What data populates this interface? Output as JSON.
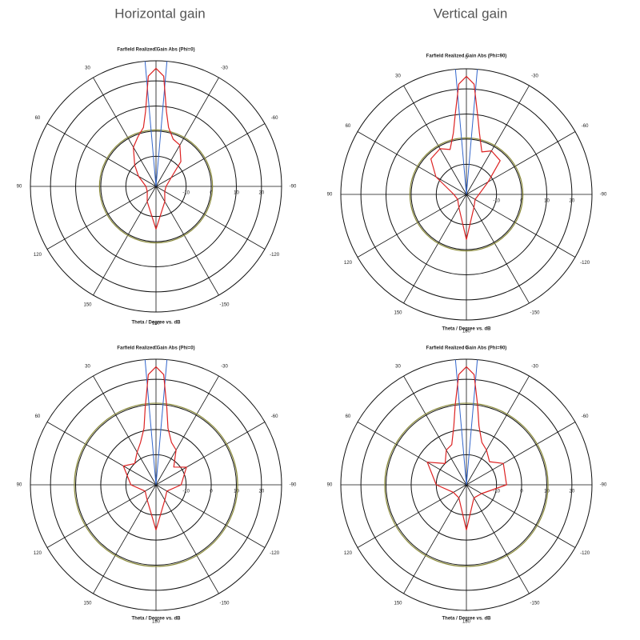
{
  "headers": [
    "Horizontal gain",
    "Vertical gain"
  ],
  "chart_data": [
    {
      "type": "polar",
      "title": "Farfield Realized Gain Abs (Phi=0)",
      "xlabel": "Theta / Degree vs. dB",
      "angle_ticks": [
        0,
        30,
        60,
        90,
        120,
        150,
        180,
        -150,
        -120,
        -90,
        -60,
        -30
      ],
      "rlim": [
        -22,
        28
      ],
      "rticks": [
        -10,
        0,
        10,
        20
      ],
      "reference_level": 0.5,
      "reference_color": "#8a8a3a",
      "beam_lines": [
        -5,
        5
      ],
      "beam_color": "#3366cc",
      "theta": [
        -180,
        -150,
        -120,
        -90,
        -60,
        -45,
        -30,
        -20,
        -12,
        -8,
        -4,
        0,
        4,
        8,
        12,
        20,
        30,
        45,
        60,
        90,
        120,
        150,
        180
      ],
      "values": [
        -5,
        -15,
        -18,
        -18,
        -15,
        -8,
        -3,
        -2,
        2,
        8,
        22,
        25,
        22,
        8,
        2,
        -1,
        -4,
        -10,
        -14,
        -18,
        -18,
        -15,
        -5
      ],
      "color": "#dd2222"
    },
    {
      "type": "polar",
      "title": "Farfield Realized Gain Abs (Phi=90)",
      "xlabel": "Theta / Degree vs. dB",
      "angle_ticks": [
        0,
        30,
        60,
        90,
        120,
        150,
        180,
        -150,
        -120,
        -90,
        -60,
        -30
      ],
      "rlim": [
        -22,
        28
      ],
      "rticks": [
        -10,
        0,
        10,
        20
      ],
      "reference_level": 0.5,
      "reference_color": "#8a8a3a",
      "beam_lines": [
        -5,
        5
      ],
      "beam_color": "#3366cc",
      "theta": [
        -180,
        -150,
        -120,
        -90,
        -60,
        -45,
        -30,
        -20,
        -12,
        -8,
        -4,
        0,
        4,
        8,
        12,
        20,
        30,
        45,
        60,
        90,
        120,
        150,
        180
      ],
      "values": [
        -4,
        -16,
        -18,
        -17,
        -12,
        -3,
        -2,
        -4,
        3,
        10,
        22,
        25,
        22,
        10,
        3,
        -3,
        -1,
        -2,
        -8,
        -17,
        -18,
        -16,
        -4
      ],
      "color": "#dd2222"
    },
    {
      "type": "polar",
      "title": "Farfield Realized Gain Abs (Phi=0)",
      "xlabel": "Theta / Degree vs. dB",
      "angle_ticks": [
        0,
        30,
        60,
        90,
        120,
        150,
        180,
        -150,
        -120,
        -90,
        -60,
        -30
      ],
      "rlim": [
        -22,
        28
      ],
      "rticks": [
        -10,
        0,
        10,
        20
      ],
      "reference_level": 10.5,
      "reference_color": "#8a8a3a",
      "beam_lines": [
        -5,
        5
      ],
      "beam_color": "#3366cc",
      "theta": [
        -180,
        -150,
        -120,
        -90,
        -60,
        -45,
        -30,
        -20,
        -12,
        -8,
        -4,
        0,
        4,
        8,
        12,
        20,
        30,
        45,
        60,
        90,
        120,
        150,
        180
      ],
      "values": [
        -4,
        -15,
        -17,
        -12,
        -8,
        -12,
        -6,
        -4,
        1,
        9,
        22,
        25,
        22,
        9,
        1,
        -4,
        -7,
        -10,
        -7,
        -12,
        -17,
        -15,
        -4
      ],
      "color": "#dd2222"
    },
    {
      "type": "polar",
      "title": "Farfield Realized Gain Abs (Phi=90)",
      "xlabel": "Theta / Degree vs. dB",
      "angle_ticks": [
        0,
        30,
        60,
        90,
        120,
        150,
        180,
        -150,
        -120,
        -90,
        -60,
        -30
      ],
      "rlim": [
        -22,
        28
      ],
      "rticks": [
        -10,
        0,
        10,
        20
      ],
      "reference_level": 10.5,
      "reference_color": "#8a8a3a",
      "beam_lines": [
        -5,
        5
      ],
      "beam_color": "#3366cc",
      "theta": [
        -180,
        -150,
        -120,
        -90,
        -60,
        -45,
        -30,
        -20,
        -12,
        -8,
        -4,
        0,
        4,
        8,
        12,
        20,
        30,
        45,
        60,
        90,
        120,
        150,
        180
      ],
      "values": [
        -4,
        -16,
        -15,
        -6,
        -5,
        -9,
        -6,
        -4,
        2,
        10,
        22,
        25,
        22,
        10,
        2,
        -5,
        -6,
        -10,
        -4,
        -10,
        -16,
        -16,
        -4
      ],
      "color": "#dd2222"
    }
  ]
}
